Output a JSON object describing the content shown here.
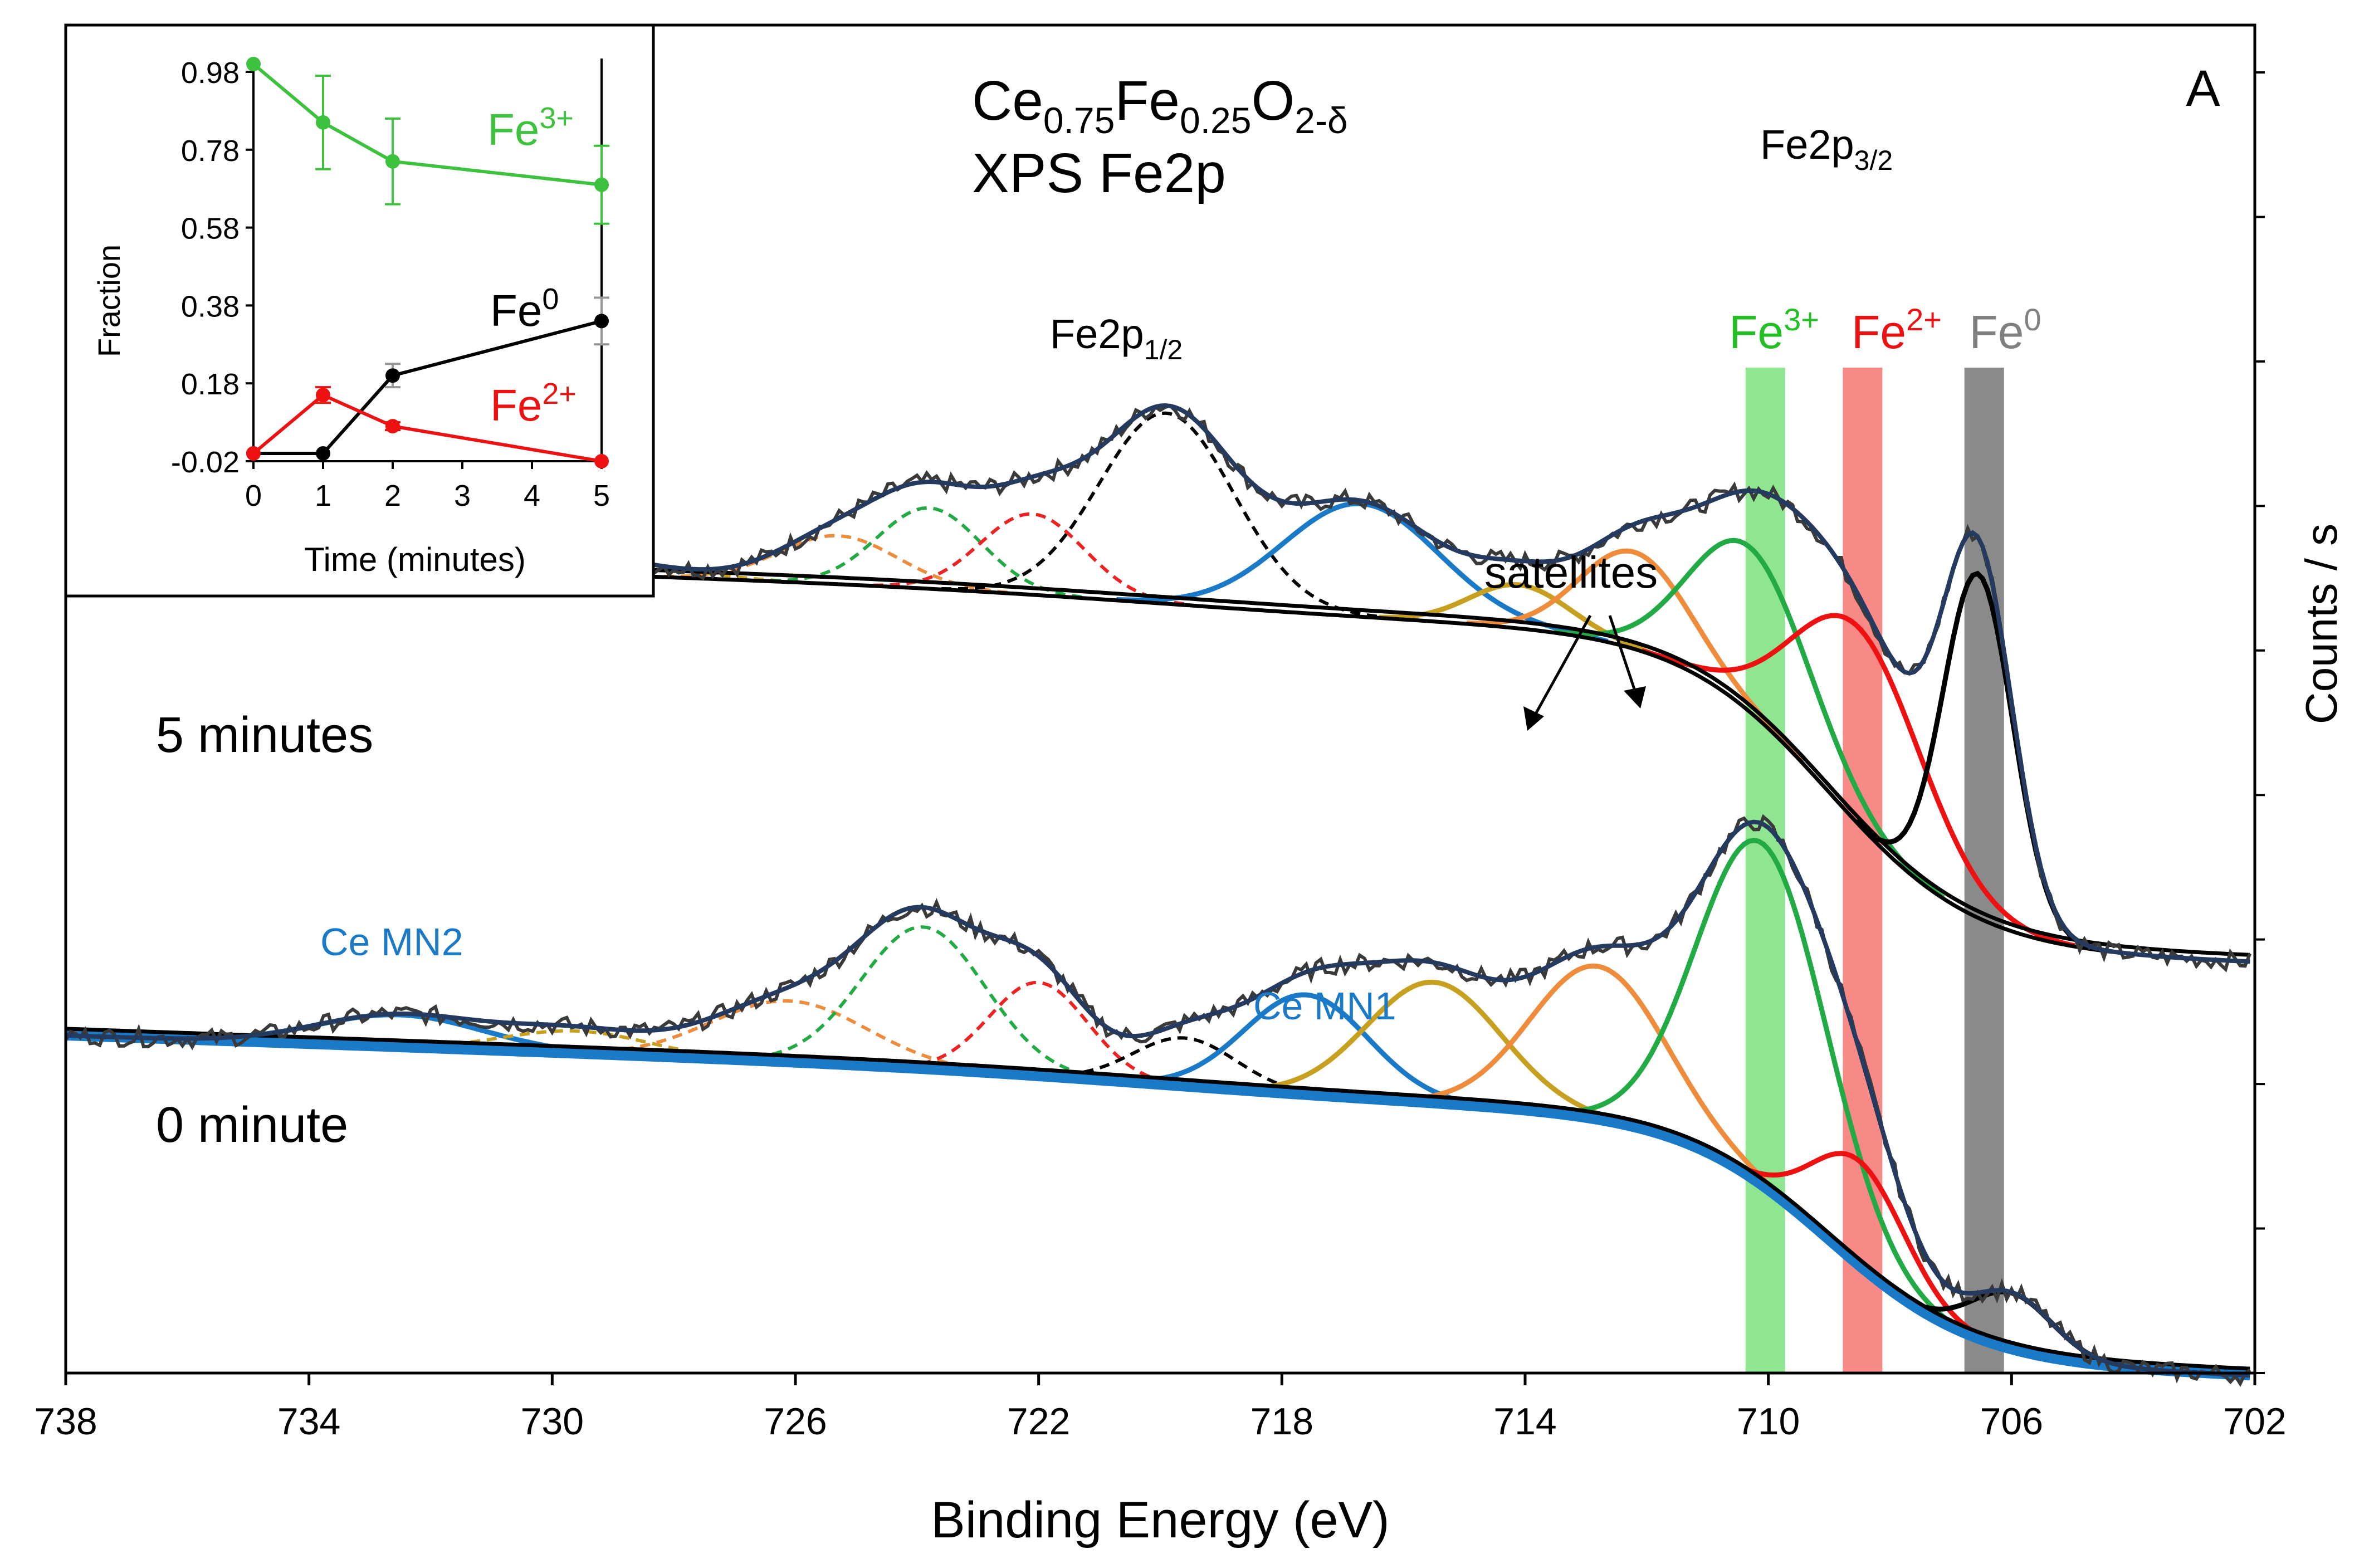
{
  "chart_data": [
    {
      "type": "line",
      "panel_label": "A",
      "title_main": "Ce",
      "title_sub1": "0.75",
      "title_fe": "Fe",
      "title_sub2": "0.25",
      "title_o": "O",
      "title_sub3": "2-δ",
      "title_line2": "XPS Fe2p",
      "xlabel": "Binding Energy (eV)",
      "ylabel": "Counts / s",
      "xlim": [
        738,
        702
      ],
      "x_reversed": true,
      "xticks": [
        "738",
        "734",
        "730",
        "726",
        "722",
        "718",
        "714",
        "710",
        "706",
        "702"
      ],
      "xtick_values": [
        738,
        734,
        730,
        726,
        722,
        718,
        714,
        710,
        706,
        702
      ],
      "yticks_unlabeled": 9,
      "peak_labels": {
        "p12_base": "Fe2p",
        "p12_sub": "1/2",
        "p32_base": "Fe2p",
        "p32_sub": "3/2"
      },
      "band_labels": [
        {
          "base": "Fe",
          "sup": "3+",
          "color": "#22c025",
          "band_color": "#90e590",
          "center": 710.05,
          "width": 0.65
        },
        {
          "base": "Fe",
          "sup": "2+",
          "color": "#ee1111",
          "band_color": "#f78a86",
          "center": 708.45,
          "width": 0.65
        },
        {
          "base": "Fe",
          "sup": "0",
          "color": "#808080",
          "band_color": "#8a8a8a",
          "center": 706.45,
          "width": 0.65
        }
      ],
      "annotations": {
        "satellites": "satellites",
        "ce_mn2": "Ce MN2",
        "ce_mn1": "Ce MN1",
        "trace_5min": "5 minutes",
        "trace_0min": "0 minute"
      },
      "traces": [
        {
          "name": "5 minutes",
          "baseline_start": 5.05,
          "baseline_end": 2.68,
          "baseline_step_center": 709.0,
          "baseline_slope_start": 4.62,
          "envelope_color": "#243a5e",
          "components": [
            {
              "center": 733.6,
              "fwhm": 3.3,
              "height": 0.15,
              "color": "#1a7ac8",
              "dash": false
            },
            {
              "center": 729.8,
              "fwhm": 3.4,
              "height": 0.12,
              "color": "#c8a020",
              "dash": true
            },
            {
              "center": 725.3,
              "fwhm": 2.3,
              "height": 0.3,
              "color": "#ee8c3c",
              "dash": true
            },
            {
              "center": 723.8,
              "fwhm": 2.0,
              "height": 0.5,
              "color": "#22aa44",
              "dash": true
            },
            {
              "center": 722.1,
              "fwhm": 2.0,
              "height": 0.5,
              "color": "#ee2222",
              "dash": true
            },
            {
              "center": 719.9,
              "fwhm": 2.6,
              "height": 1.18,
              "color": "#000000",
              "dash": true
            },
            {
              "center": 716.7,
              "fwhm": 3.0,
              "height": 0.7,
              "color": "#1a7ac8",
              "dash": false
            },
            {
              "center": 714.1,
              "fwhm": 1.9,
              "height": 0.27,
              "color": "#c8a020",
              "dash": false
            },
            {
              "center": 712.2,
              "fwhm": 2.1,
              "height": 0.6,
              "color": "#ee8c3c",
              "dash": false
            },
            {
              "center": 710.3,
              "fwhm": 2.3,
              "height": 1.02,
              "color": "#22aa44",
              "dash": false
            },
            {
              "center": 708.5,
              "fwhm": 2.5,
              "height": 1.22,
              "color": "#ee1111",
              "dash": false
            },
            {
              "center": 706.55,
              "fwhm": 1.35,
              "height": 2.13,
              "color": "#000000",
              "dash": false
            }
          ]
        },
        {
          "name": "0 minute",
          "baseline_start": 2.09,
          "baseline_end": 0.12,
          "baseline_step_center": 709.0,
          "baseline_slope_start": 1.62,
          "envelope_color": "#243a5e",
          "components": [
            {
              "center": 732.5,
              "fwhm": 3.2,
              "height": 0.2,
              "color": "#1a7ac8",
              "dash": false
            },
            {
              "center": 729.6,
              "fwhm": 2.8,
              "height": 0.14,
              "color": "#c8a020",
              "dash": true
            },
            {
              "center": 726.1,
              "fwhm": 3.0,
              "height": 0.38,
              "color": "#ee8c3c",
              "dash": true
            },
            {
              "center": 723.9,
              "fwhm": 2.4,
              "height": 0.88,
              "color": "#22aa44",
              "dash": true
            },
            {
              "center": 722.0,
              "fwhm": 1.9,
              "height": 0.58,
              "color": "#ee2222",
              "dash": true
            },
            {
              "center": 719.6,
              "fwhm": 2.0,
              "height": 0.3,
              "color": "#000000",
              "dash": true
            },
            {
              "center": 717.6,
              "fwhm": 2.4,
              "height": 0.62,
              "color": "#1a7ac8",
              "dash": false
            },
            {
              "center": 715.5,
              "fwhm": 2.6,
              "height": 0.75,
              "color": "#c8a020",
              "dash": false
            },
            {
              "center": 712.8,
              "fwhm": 2.6,
              "height": 0.95,
              "color": "#ee8c3c",
              "dash": false
            },
            {
              "center": 710.1,
              "fwhm": 2.5,
              "height": 2.12,
              "color": "#22aa44",
              "dash": false
            },
            {
              "center": 708.5,
              "fwhm": 1.8,
              "height": 0.65,
              "color": "#ee1111",
              "dash": false
            },
            {
              "center": 706.0,
              "fwhm": 1.6,
              "height": 0.35,
              "color": "#000000",
              "dash": false
            }
          ]
        }
      ]
    },
    {
      "type": "line",
      "role": "inset",
      "xlabel": "Time (minutes)",
      "ylabel": "Fraction",
      "xlim": [
        0,
        5
      ],
      "ylim": [
        -0.02,
        1.0
      ],
      "xticks": [
        "0",
        "1",
        "2",
        "3",
        "4",
        "5"
      ],
      "yticks": [
        "0.98",
        "0.78",
        "0.58",
        "0.38",
        "0.18",
        "-0.02"
      ],
      "ytick_values": [
        0.98,
        0.78,
        0.58,
        0.38,
        0.18,
        -0.02
      ],
      "series": [
        {
          "name": "Fe",
          "sup": "3+",
          "color": "#3cc23c",
          "x": [
            0,
            1,
            2,
            5
          ],
          "values": [
            1.0,
            0.85,
            0.75,
            0.69
          ],
          "errors": [
            0.0,
            0.12,
            0.11,
            0.1
          ]
        },
        {
          "name": "Fe",
          "sup": "0",
          "color": "#000000",
          "x": [
            0,
            1,
            2,
            5
          ],
          "values": [
            0.0,
            0.0,
            0.2,
            0.34
          ],
          "errors": [
            0.0,
            0.0,
            0.03,
            0.06
          ]
        },
        {
          "name": "Fe",
          "sup": "2+",
          "color": "#ee1111",
          "x": [
            0,
            1,
            2,
            5
          ],
          "values": [
            0.0,
            0.15,
            0.07,
            -0.02
          ],
          "errors": [
            0.0,
            0.02,
            0.01,
            0.0
          ]
        }
      ]
    }
  ]
}
